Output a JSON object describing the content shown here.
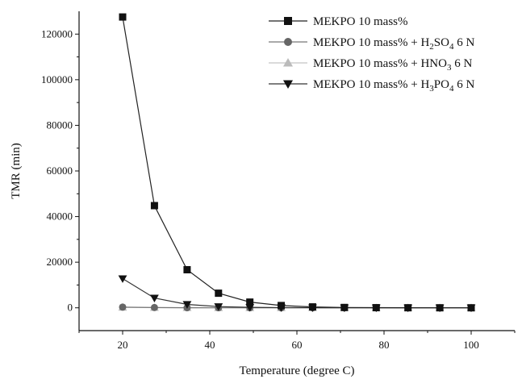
{
  "chart_data": {
    "type": "line",
    "xlabel": "Temperature (degree C)",
    "ylabel": "TMR (min)",
    "xlim": [
      10,
      110
    ],
    "ylim": [
      -10000,
      130000
    ],
    "xticks": [
      20,
      40,
      60,
      80,
      100
    ],
    "xtick_labels": [
      "20",
      "40",
      "60",
      "80",
      "100"
    ],
    "yticks": [
      0,
      20000,
      40000,
      60000,
      80000,
      100000,
      120000
    ],
    "ytick_labels": [
      "0",
      "20000",
      "40000",
      "60000",
      "80000",
      "100000",
      "120000"
    ],
    "grid": false,
    "legend_position": "top-right",
    "x": [
      20,
      27.3,
      34.8,
      42,
      49.2,
      56.4,
      63.6,
      70.9,
      78.2,
      85.5,
      92.8,
      100
    ],
    "series": [
      {
        "name": "MEKPO 10 mass%",
        "legend_parts": [
          {
            "t": "MEKPO 10 mass%"
          }
        ],
        "marker": "square",
        "color": "#111111",
        "line_color": "#222222",
        "values": [
          127500,
          44800,
          16700,
          6400,
          2500,
          1000,
          400,
          150,
          60,
          25,
          10,
          5
        ]
      },
      {
        "name": "MEKPO 10 mass% + H2SO4 6 N",
        "legend_parts": [
          {
            "t": "MEKPO 10 mass% + H"
          },
          {
            "t": "2",
            "sub": true
          },
          {
            "t": "SO"
          },
          {
            "t": "4",
            "sub": true
          },
          {
            "t": " 6 N"
          }
        ],
        "marker": "circle",
        "color": "#666666",
        "line_color": "#777777",
        "values": [
          300,
          120,
          50,
          20,
          10,
          5,
          2,
          1,
          1,
          0,
          0,
          0
        ]
      },
      {
        "name": "MEKPO 10 mass% + HNO3 6 N",
        "legend_parts": [
          {
            "t": "MEKPO 10 mass% + HNO"
          },
          {
            "t": "3",
            "sub": true
          },
          {
            "t": " 6 N"
          }
        ],
        "marker": "triangle-up",
        "color": "#bbbbbb",
        "line_color": "#c4c4c4",
        "values": [
          200,
          80,
          30,
          12,
          5,
          2,
          1,
          0,
          0,
          0,
          0,
          0
        ]
      },
      {
        "name": "MEKPO 10 mass% + H3PO4 6 N",
        "legend_parts": [
          {
            "t": "MEKPO 10 mass% + H"
          },
          {
            "t": "3",
            "sub": true
          },
          {
            "t": "PO"
          },
          {
            "t": "4",
            "sub": true
          },
          {
            "t": " 6 N"
          }
        ],
        "marker": "triangle-down",
        "color": "#111111",
        "line_color": "#333333",
        "values": [
          12800,
          4300,
          1500,
          550,
          200,
          80,
          30,
          12,
          5,
          2,
          1,
          0
        ]
      }
    ]
  }
}
